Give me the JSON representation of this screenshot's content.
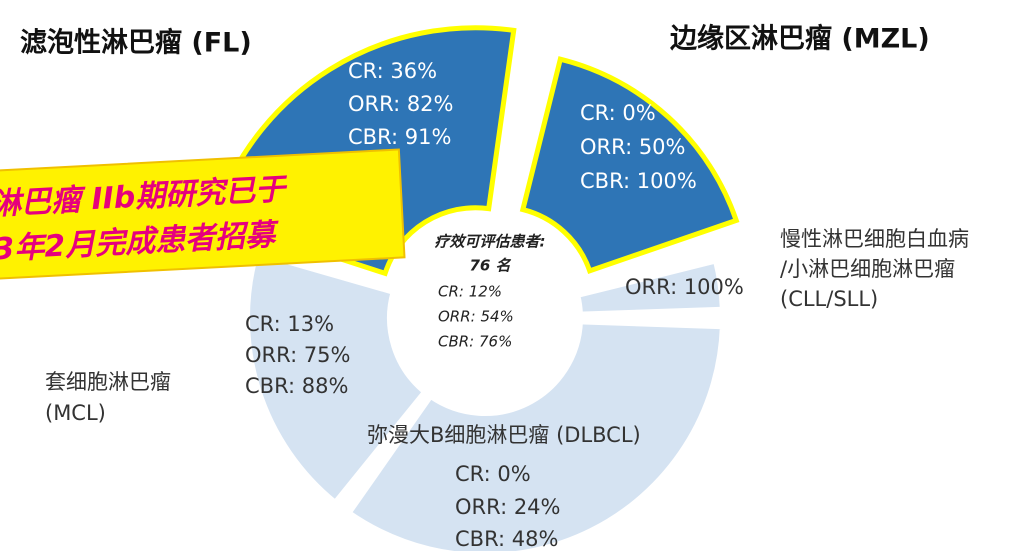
{
  "titles": {
    "fl": "滤泡性淋巴瘤 (FL)",
    "mzl": "边缘区淋巴瘤 (MZL)"
  },
  "segments": {
    "fl": {
      "lines": [
        "CR: 36%",
        "ORR: 82%",
        "CBR: 91%"
      ]
    },
    "mzl": {
      "lines": [
        "CR: 0%",
        "ORR: 50%",
        "CBR: 100%"
      ]
    },
    "cll": {
      "name": [
        "慢性淋巴细胞白血病",
        "/小淋巴细胞淋巴瘤",
        "(CLL/SLL)"
      ],
      "lines": [
        "ORR: 100%"
      ]
    },
    "dlbcl": {
      "name": [
        "弥漫大B细胞淋巴瘤 (DLBCL)"
      ],
      "lines": [
        "CR: 0%",
        "ORR: 24%",
        "CBR: 48%"
      ]
    },
    "mcl": {
      "name": [
        "套细胞淋巴瘤",
        "(MCL)"
      ],
      "lines": [
        "CR: 13%",
        "ORR: 75%",
        "CBR: 88%"
      ]
    }
  },
  "center": {
    "heading": [
      "疗效可评估患者:",
      "76 名"
    ],
    "lines": [
      "CR: 12%",
      "ORR: 54%",
      "CBR: 76%"
    ]
  },
  "banner": [
    "淋巴瘤 IIb期研究已于",
    "3年2月完成患者招募"
  ]
}
